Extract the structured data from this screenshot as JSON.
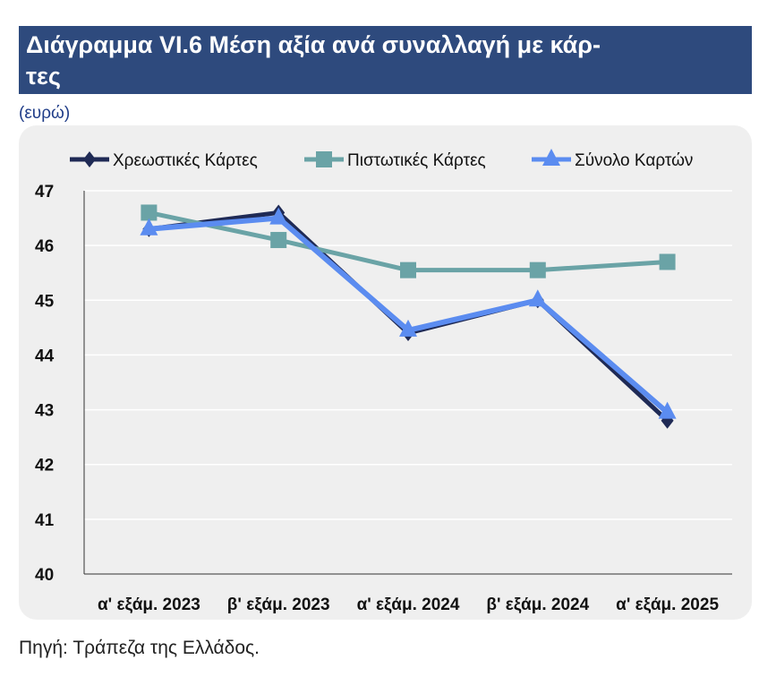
{
  "header": {
    "title": "Διάγραμμα VI.6 Μέση αξία ανά συναλλαγή με κάρ-\nτες",
    "unit": "(ευρώ)"
  },
  "footer": {
    "source": "Πηγή: Τράπεζα της Ελλάδος."
  },
  "chart_data": {
    "type": "line",
    "title": "Διάγραμμα VI.6 Μέση αξία ανά συναλλαγή με κάρτες",
    "ylabel": "(ευρώ)",
    "xlabel": "",
    "categories": [
      "α' εξάμ. 2023",
      "β' εξάμ. 2023",
      "α' εξάμ. 2024",
      "β' εξάμ. 2024",
      "α' εξάμ. 2025"
    ],
    "ylim": [
      40,
      47
    ],
    "yticks": [
      "40",
      "41",
      "42",
      "43",
      "44",
      "45",
      "46",
      "47"
    ],
    "grid": true,
    "legend_position": "top",
    "series": [
      {
        "name": "Χρεωστικές Κάρτες",
        "values": [
          46.3,
          46.6,
          44.4,
          45.0,
          42.8
        ],
        "color": "#1f2a55",
        "marker": "diamond"
      },
      {
        "name": "Πιστωτικές Κάρτες",
        "values": [
          46.6,
          46.1,
          45.55,
          45.55,
          45.7
        ],
        "color": "#6aa3a6",
        "marker": "square"
      },
      {
        "name": "Σύνολο Καρτών",
        "values": [
          46.3,
          46.5,
          44.45,
          45.0,
          42.95
        ],
        "color": "#5b8cf0",
        "marker": "triangle"
      }
    ]
  }
}
